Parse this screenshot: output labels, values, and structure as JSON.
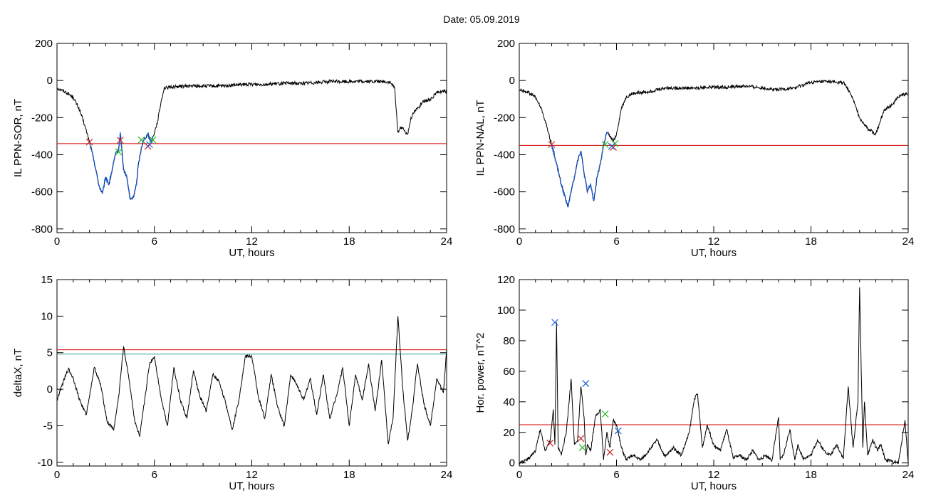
{
  "title": "Date:  05.09.2019",
  "colors": {
    "axis": "#000000",
    "trace": "#000000",
    "threshold": "#d40000",
    "threshold2": "#2aa0a0",
    "blue_mark": "#1a5fd8",
    "green_mark": "#22bb22",
    "red_mark": "#cc2222"
  },
  "chart_data": [
    {
      "id": "p1",
      "type": "line",
      "xlabel": "UT, hours",
      "ylabel": "IL PPN-SOR, nT",
      "xlim": [
        0,
        24
      ],
      "ylim": [
        -820,
        200
      ],
      "xticks": [
        0,
        6,
        12,
        18,
        24
      ],
      "yticks": [
        200,
        0,
        -200,
        -400,
        -600,
        -800
      ],
      "x": [
        0,
        0.5,
        1,
        1.4,
        1.7,
        2.0,
        2.3,
        2.6,
        2.8,
        3.0,
        3.2,
        3.4,
        3.6,
        3.8,
        3.9,
        4.1,
        4.3,
        4.5,
        4.7,
        4.9,
        5.0,
        5.2,
        5.4,
        5.6,
        5.8,
        6.0,
        6.2,
        6.4,
        6.6,
        6.8,
        7,
        8,
        9,
        10,
        11,
        12,
        13,
        14,
        15,
        16,
        17,
        18,
        19,
        20,
        20.5,
        20.8,
        21.0,
        21.2,
        21.4,
        21.6,
        21.8,
        22.0,
        22.5,
        23,
        23.5,
        24
      ],
      "values": [
        -40,
        -60,
        -90,
        -160,
        -240,
        -330,
        -440,
        -570,
        -610,
        -520,
        -560,
        -480,
        -400,
        -370,
        -280,
        -480,
        -520,
        -640,
        -630,
        -560,
        -460,
        -360,
        -310,
        -290,
        -330,
        -280,
        -220,
        -120,
        -40,
        -40,
        -35,
        -30,
        -30,
        -30,
        -25,
        -20,
        -20,
        -15,
        -15,
        -10,
        -5,
        -5,
        -5,
        -5,
        -10,
        -40,
        -280,
        -250,
        -270,
        -290,
        -200,
        -170,
        -120,
        -100,
        -60,
        -60
      ],
      "highlight": {
        "x_range": [
          2.0,
          5.9
        ],
        "color": "#1a5fd8"
      },
      "threshold": -340,
      "markers": [
        {
          "x": 2.0,
          "y": -332,
          "color": "red"
        },
        {
          "x": 3.9,
          "y": -322,
          "color": "red"
        },
        {
          "x": 5.6,
          "y": -355,
          "color": "red"
        },
        {
          "x": 3.8,
          "y": -385,
          "color": "green"
        },
        {
          "x": 5.2,
          "y": -320,
          "color": "green"
        },
        {
          "x": 5.9,
          "y": -320,
          "color": "green"
        },
        {
          "x": 5.7,
          "y": -345,
          "color": "blue"
        }
      ]
    },
    {
      "id": "p2",
      "type": "line",
      "xlabel": "UT, hours",
      "ylabel": "IL PPN-NAL, nT",
      "xlim": [
        0,
        24
      ],
      "ylim": [
        -820,
        200
      ],
      "xticks": [
        0,
        6,
        12,
        18,
        24
      ],
      "yticks": [
        200,
        0,
        -200,
        -400,
        -600,
        -800
      ],
      "x": [
        0,
        0.5,
        1,
        1.4,
        1.7,
        2.0,
        2.3,
        2.6,
        2.8,
        3.0,
        3.2,
        3.4,
        3.6,
        3.8,
        4.0,
        4.2,
        4.4,
        4.6,
        4.8,
        5.0,
        5.2,
        5.4,
        5.6,
        5.8,
        6.0,
        6.3,
        6.6,
        7,
        8,
        9,
        10,
        11,
        12,
        13,
        14,
        15,
        16,
        17,
        18,
        19,
        19.5,
        20,
        20.5,
        21,
        21.5,
        22,
        22.5,
        23,
        23.5,
        24
      ],
      "values": [
        -50,
        -60,
        -90,
        -160,
        -250,
        -345,
        -450,
        -560,
        -620,
        -680,
        -600,
        -520,
        -430,
        -380,
        -500,
        -600,
        -560,
        -650,
        -520,
        -450,
        -350,
        -280,
        -300,
        -330,
        -290,
        -150,
        -90,
        -70,
        -60,
        -40,
        -40,
        -40,
        -35,
        -35,
        -30,
        -40,
        -50,
        -40,
        -10,
        -5,
        -10,
        -10,
        -80,
        -200,
        -260,
        -290,
        -160,
        -130,
        -80,
        -70
      ],
      "highlight": {
        "x_range": [
          2.0,
          5.5
        ],
        "color": "#1a5fd8"
      },
      "threshold": -350,
      "markers": [
        {
          "x": 2.0,
          "y": -345,
          "color": "red"
        },
        {
          "x": 5.8,
          "y": -360,
          "color": "red"
        },
        {
          "x": 5.3,
          "y": -345,
          "color": "green"
        },
        {
          "x": 5.9,
          "y": -340,
          "color": "green"
        },
        {
          "x": 5.7,
          "y": -355,
          "color": "blue"
        }
      ]
    },
    {
      "id": "p3",
      "type": "line",
      "xlabel": "UT, hours",
      "ylabel": "deltaX, nT",
      "xlim": [
        0,
        24
      ],
      "ylim": [
        -10.5,
        15
      ],
      "xticks": [
        0,
        6,
        12,
        18,
        24
      ],
      "yticks": [
        15,
        10,
        5,
        0,
        -5,
        -10
      ],
      "x": [
        0,
        0.3,
        0.7,
        1.0,
        1.4,
        1.8,
        2.3,
        2.7,
        3.1,
        3.5,
        3.8,
        4.1,
        4.4,
        4.8,
        5.1,
        5.4,
        5.7,
        6.0,
        6.4,
        6.8,
        7.2,
        7.6,
        8.0,
        8.4,
        8.8,
        9.2,
        9.6,
        10.0,
        10.4,
        10.8,
        11.2,
        11.6,
        12.0,
        12.4,
        12.8,
        13.2,
        13.6,
        14.0,
        14.4,
        14.8,
        15.2,
        15.6,
        16.0,
        16.4,
        16.8,
        17.2,
        17.6,
        18.0,
        18.4,
        18.8,
        19.2,
        19.6,
        20.0,
        20.4,
        20.7,
        21.0,
        21.3,
        21.6,
        21.9,
        22.2,
        22.6,
        23.0,
        23.4,
        23.8,
        24.0
      ],
      "values": [
        -1.5,
        0.5,
        2.8,
        1.5,
        -1.5,
        -3.5,
        3.0,
        0.5,
        -4.5,
        -5.5,
        -1.0,
        5.8,
        2.0,
        -4.5,
        -6.5,
        -1.5,
        3.5,
        4.5,
        -1.0,
        -5.0,
        3.0,
        -1.5,
        -4.0,
        2.5,
        -1.0,
        -3.0,
        2.0,
        1.0,
        -2.0,
        -5.5,
        -1.5,
        4.5,
        4.5,
        -1.0,
        -4.0,
        2.0,
        -2.5,
        -5.0,
        2.0,
        0.5,
        -1.5,
        1.5,
        -3.5,
        2.0,
        -4.0,
        -1.0,
        3.0,
        -5.0,
        2.0,
        -1.5,
        3.5,
        -3.0,
        4.0,
        -7.5,
        -4.0,
        10.0,
        0.0,
        -7.0,
        -2.5,
        3.5,
        -2.0,
        -5.0,
        1.5,
        -0.5,
        5.5
      ],
      "threshold": 5.4,
      "threshold2": 4.8,
      "markers": []
    },
    {
      "id": "p4",
      "type": "line",
      "xlabel": "UT, hours",
      "ylabel": "Hor. power, nT^2",
      "xlim": [
        0,
        24
      ],
      "ylim": [
        -2,
        120
      ],
      "xticks": [
        0,
        6,
        12,
        18,
        24
      ],
      "yticks": [
        120,
        100,
        80,
        60,
        40,
        20,
        0
      ],
      "x": [
        0,
        0.5,
        1.0,
        1.3,
        1.6,
        1.9,
        2.1,
        2.2,
        2.3,
        2.4,
        2.6,
        2.9,
        3.2,
        3.4,
        3.6,
        3.8,
        4.0,
        4.1,
        4.2,
        4.4,
        4.7,
        5.0,
        5.2,
        5.4,
        5.6,
        5.8,
        6.0,
        6.3,
        6.6,
        7.0,
        7.5,
        8.0,
        8.5,
        9.0,
        9.5,
        10.0,
        10.5,
        10.8,
        11.0,
        11.3,
        11.6,
        12.0,
        12.4,
        12.8,
        13.2,
        13.6,
        14.0,
        14.4,
        14.8,
        15.2,
        15.6,
        16.0,
        16.1,
        16.3,
        16.7,
        17.0,
        17.2,
        17.5,
        18.0,
        18.4,
        18.8,
        19.2,
        19.6,
        20.0,
        20.3,
        20.6,
        20.9,
        21.0,
        21.2,
        21.3,
        21.5,
        21.8,
        22.1,
        22.3,
        22.6,
        23.0,
        23.4,
        23.8,
        24.0
      ],
      "values": [
        0,
        2,
        8,
        22,
        8,
        14,
        35,
        12,
        92,
        10,
        5,
        20,
        55,
        12,
        15,
        50,
        30,
        5,
        12,
        8,
        30,
        35,
        2,
        20,
        10,
        28,
        25,
        10,
        2,
        5,
        2,
        8,
        15,
        4,
        10,
        5,
        20,
        42,
        45,
        10,
        25,
        12,
        8,
        22,
        3,
        5,
        2,
        8,
        2,
        5,
        2,
        30,
        2,
        5,
        22,
        2,
        12,
        3,
        5,
        15,
        8,
        5,
        12,
        3,
        50,
        10,
        40,
        115,
        10,
        40,
        5,
        15,
        8,
        12,
        2,
        1,
        0,
        28,
        0
      ],
      "threshold": 25,
      "markers": [
        {
          "x": 1.9,
          "y": 13,
          "color": "red"
        },
        {
          "x": 3.8,
          "y": 16,
          "color": "red"
        },
        {
          "x": 5.6,
          "y": 7,
          "color": "red"
        },
        {
          "x": 3.9,
          "y": 10,
          "color": "green"
        },
        {
          "x": 5.3,
          "y": 32,
          "color": "green"
        },
        {
          "x": 2.2,
          "y": 92,
          "color": "blue"
        },
        {
          "x": 4.1,
          "y": 52,
          "color": "blue"
        },
        {
          "x": 6.1,
          "y": 21,
          "color": "blue"
        }
      ]
    }
  ]
}
